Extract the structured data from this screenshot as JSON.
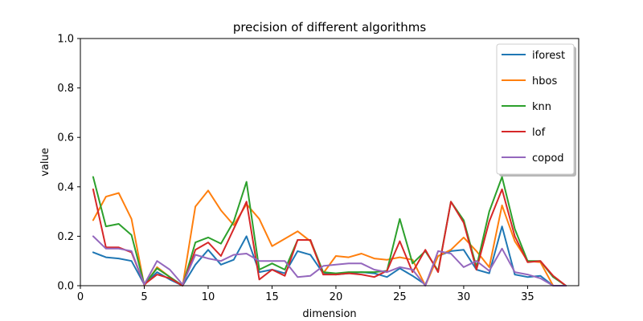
{
  "chart_data": {
    "type": "line",
    "title": "precision of different algorithms",
    "xlabel": "dimension",
    "ylabel": "value",
    "xlim": [
      0,
      39
    ],
    "ylim": [
      0.0,
      1.0
    ],
    "xticks": [
      0,
      5,
      10,
      15,
      20,
      25,
      30,
      35
    ],
    "yticks": [
      0.0,
      0.2,
      0.4,
      0.6,
      0.8,
      1.0
    ],
    "x": [
      1,
      2,
      3,
      4,
      5,
      6,
      7,
      8,
      9,
      10,
      11,
      12,
      13,
      14,
      15,
      16,
      17,
      18,
      19,
      20,
      21,
      22,
      23,
      24,
      25,
      26,
      27,
      28,
      29,
      30,
      31,
      32,
      33,
      34,
      35,
      36,
      37,
      38
    ],
    "legend_position": "top-right",
    "grid": false,
    "series": [
      {
        "name": "iforest",
        "color": "#1f77b4",
        "values": [
          0.135,
          0.115,
          0.11,
          0.1,
          0.005,
          0.055,
          0.025,
          0.0,
          0.085,
          0.145,
          0.085,
          0.105,
          0.2,
          0.055,
          0.065,
          0.05,
          0.14,
          0.125,
          0.05,
          0.045,
          0.05,
          0.055,
          0.05,
          0.035,
          0.07,
          0.04,
          0.005,
          0.12,
          0.14,
          0.145,
          0.065,
          0.05,
          0.24,
          0.045,
          0.035,
          0.04,
          0.0,
          0.0
        ]
      },
      {
        "name": "hbos",
        "color": "#ff7f0e",
        "values": [
          0.265,
          0.36,
          0.375,
          0.27,
          0.0,
          0.075,
          0.035,
          0.0,
          0.32,
          0.385,
          0.305,
          0.245,
          0.33,
          0.27,
          0.16,
          0.19,
          0.22,
          0.18,
          0.05,
          0.12,
          0.115,
          0.13,
          0.11,
          0.105,
          0.115,
          0.105,
          0.0,
          0.12,
          0.145,
          0.195,
          0.14,
          0.075,
          0.325,
          0.18,
          0.1,
          0.095,
          0.0,
          0.0
        ]
      },
      {
        "name": "knn",
        "color": "#2ca02c",
        "values": [
          0.44,
          0.24,
          0.25,
          0.205,
          0.005,
          0.07,
          0.035,
          0.0,
          0.175,
          0.195,
          0.17,
          0.26,
          0.42,
          0.065,
          0.09,
          0.065,
          0.185,
          0.185,
          0.055,
          0.05,
          0.055,
          0.055,
          0.055,
          0.06,
          0.27,
          0.09,
          0.14,
          0.06,
          0.34,
          0.265,
          0.075,
          0.3,
          0.44,
          0.23,
          0.1,
          0.1,
          0.035,
          0.0
        ]
      },
      {
        "name": "lof",
        "color": "#d62728",
        "values": [
          0.39,
          0.155,
          0.155,
          0.135,
          0.005,
          0.045,
          0.03,
          0.0,
          0.145,
          0.175,
          0.12,
          0.23,
          0.34,
          0.025,
          0.065,
          0.04,
          0.185,
          0.185,
          0.045,
          0.045,
          0.05,
          0.045,
          0.035,
          0.06,
          0.18,
          0.055,
          0.145,
          0.055,
          0.34,
          0.255,
          0.065,
          0.26,
          0.39,
          0.2,
          0.095,
          0.1,
          0.04,
          0.0
        ]
      },
      {
        "name": "copod",
        "color": "#9467bd",
        "values": [
          0.2,
          0.15,
          0.15,
          0.14,
          0.005,
          0.1,
          0.065,
          0.005,
          0.125,
          0.11,
          0.1,
          0.125,
          0.13,
          0.1,
          0.1,
          0.1,
          0.035,
          0.04,
          0.08,
          0.085,
          0.09,
          0.09,
          0.065,
          0.055,
          0.075,
          0.065,
          0.0,
          0.14,
          0.13,
          0.075,
          0.1,
          0.06,
          0.15,
          0.055,
          0.045,
          0.03,
          0.0,
          0.0
        ]
      }
    ]
  }
}
